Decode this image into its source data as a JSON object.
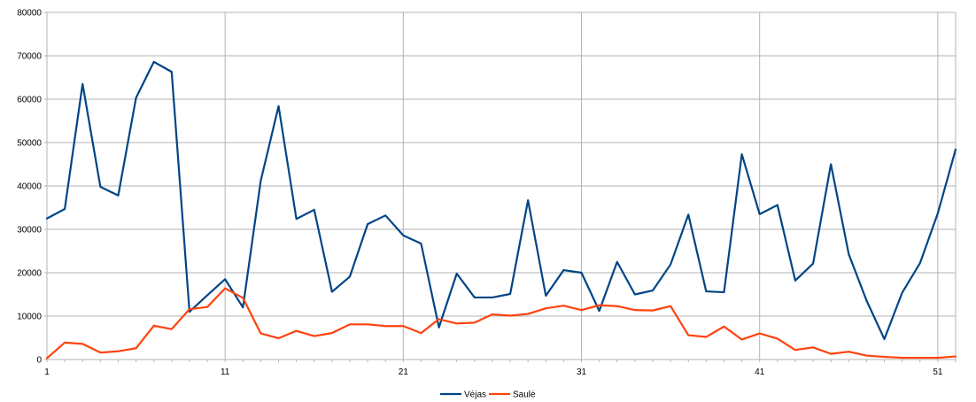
{
  "chart_data": {
    "type": "line",
    "title": "",
    "xlabel": "",
    "ylabel": "",
    "x": [
      1,
      2,
      3,
      4,
      5,
      6,
      7,
      8,
      9,
      10,
      11,
      12,
      13,
      14,
      15,
      16,
      17,
      18,
      19,
      20,
      21,
      22,
      23,
      24,
      25,
      26,
      27,
      28,
      29,
      30,
      31,
      32,
      33,
      34,
      35,
      36,
      37,
      38,
      39,
      40,
      41,
      42,
      43,
      44,
      45,
      46,
      47,
      48,
      49,
      50,
      51,
      52
    ],
    "x_ticks": [
      "1",
      "11",
      "21",
      "31",
      "41",
      "51"
    ],
    "y_ticks": [
      "0",
      "10000",
      "20000",
      "30000",
      "40000",
      "50000",
      "60000",
      "70000",
      "80000"
    ],
    "xlim": [
      1,
      52
    ],
    "ylim": [
      0,
      80000
    ],
    "grid": true,
    "legend_position": "bottom",
    "series": [
      {
        "name": "Vėjas",
        "color": "#004586",
        "values": [
          32500,
          34700,
          63500,
          39800,
          37800,
          60300,
          68600,
          66300,
          11000,
          14800,
          18500,
          12000,
          41200,
          58400,
          32400,
          34500,
          15600,
          19100,
          31200,
          33200,
          28600,
          26700,
          7400,
          19800,
          14300,
          14300,
          15100,
          36700,
          14700,
          20600,
          20000,
          11200,
          22500,
          15000,
          15900,
          21900,
          33400,
          15700,
          15500,
          47300,
          33500,
          35600,
          18200,
          22100,
          45000,
          24300,
          13600,
          4700,
          15400,
          22200,
          33700,
          48400
        ]
      },
      {
        "name": "Saulė",
        "color": "#ff420e",
        "values": [
          300,
          3900,
          3600,
          1600,
          1900,
          2600,
          7800,
          7000,
          11600,
          12100,
          16400,
          14200,
          6000,
          4900,
          6600,
          5400,
          6100,
          8100,
          8100,
          7700,
          7700,
          6100,
          9300,
          8300,
          8500,
          10400,
          10100,
          10500,
          11800,
          12400,
          11400,
          12500,
          12300,
          11400,
          11300,
          12300,
          5600,
          5200,
          7600,
          4600,
          6000,
          4800,
          2200,
          2800,
          1300,
          1800,
          900,
          600,
          400,
          400,
          400,
          700
        ]
      }
    ]
  }
}
